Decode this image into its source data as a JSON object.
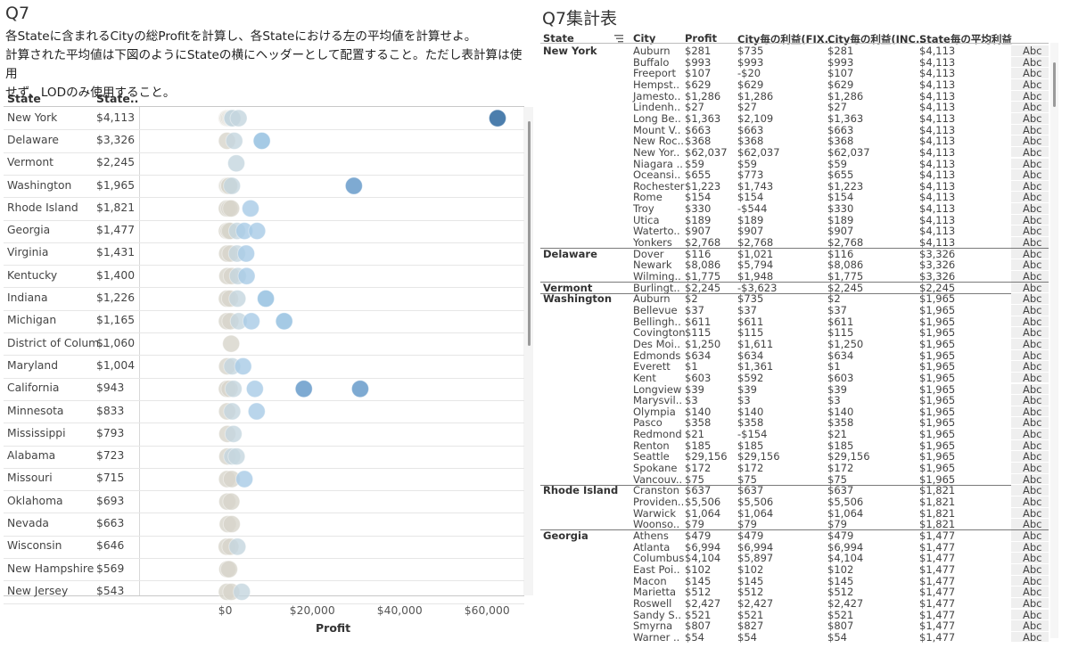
{
  "left": {
    "title": "Q7",
    "description_line1": "各Stateに含まれるCityの総Profitを計算し、各Stateにおける左の平均値を計算せよ。",
    "description_line2": "計算された平均値は下図のようにStateの横にヘッダーとして配置すること。ただし表計算は使用",
    "description_line3": "せず、LODのみ使用すること。",
    "header_state": "State",
    "header_value": "State..",
    "x_axis_title": "Profit",
    "x_ticks": [
      "$0",
      "$20,000",
      "$40,000",
      "$60,000"
    ],
    "rows": [
      {
        "state": "New York",
        "avg": "$4,113",
        "points": [
          281,
          993,
          107,
          629,
          1286,
          27,
          1363,
          663,
          368,
          62037,
          59,
          655,
          1223,
          154,
          330,
          189,
          907,
          2768
        ]
      },
      {
        "state": "Delaware",
        "avg": "$3,326",
        "points": [
          116,
          8086,
          1775
        ]
      },
      {
        "state": "Vermont",
        "avg": "$2,245",
        "points": [
          2245
        ]
      },
      {
        "state": "Washington",
        "avg": "$1,965",
        "points": [
          2,
          37,
          611,
          115,
          1250,
          634,
          1,
          603,
          39,
          3,
          140,
          358,
          21,
          185,
          29156,
          172,
          75
        ]
      },
      {
        "state": "Rhode Island",
        "avg": "$1,821",
        "points": [
          637,
          5506,
          1064,
          79
        ]
      },
      {
        "state": "Georgia",
        "avg": "$1,477",
        "points": [
          479,
          6994,
          4104,
          102,
          145,
          512,
          2427,
          521,
          807,
          54
        ]
      },
      {
        "state": "Virginia",
        "avg": "$1,431",
        "points": [
          150,
          900,
          2400,
          4500
        ]
      },
      {
        "state": "Kentucky",
        "avg": "$1,400",
        "points": [
          200,
          1200,
          2600,
          4600
        ]
      },
      {
        "state": "Indiana",
        "avg": "$1,226",
        "points": [
          100,
          800,
          2500,
          9000
        ]
      },
      {
        "state": "Michigan",
        "avg": "$1,165",
        "points": [
          100,
          900,
          2800,
          5700,
          13200
        ]
      },
      {
        "state": "District of Colum..",
        "avg": "$1,060",
        "points": [
          1060
        ]
      },
      {
        "state": "Maryland",
        "avg": "$1,004",
        "points": [
          150,
          1300,
          3800
        ]
      },
      {
        "state": "California",
        "avg": "$943",
        "points": [
          100,
          700,
          1600,
          6500,
          17700,
          30600
        ]
      },
      {
        "state": "Minnesota",
        "avg": "$833",
        "points": [
          150,
          1300,
          6900
        ]
      },
      {
        "state": "Mississippi",
        "avg": "$793",
        "points": [
          200,
          1600
        ]
      },
      {
        "state": "Alabama",
        "avg": "$723",
        "points": [
          200,
          1300,
          2300
        ]
      },
      {
        "state": "Missouri",
        "avg": "$715",
        "points": [
          150,
          1200,
          4100
        ]
      },
      {
        "state": "Oklahoma",
        "avg": "$693",
        "points": [
          200,
          1100
        ]
      },
      {
        "state": "Nevada",
        "avg": "$663",
        "points": [
          300,
          1200
        ]
      },
      {
        "state": "Wisconsin",
        "avg": "$646",
        "points": [
          50,
          900,
          2500
        ]
      },
      {
        "state": "New Hampshire",
        "avg": "$569",
        "points": [
          200,
          600
        ]
      },
      {
        "state": "New Jersey",
        "avg": "$543",
        "points": [
          100,
          1100,
          3500
        ]
      }
    ]
  },
  "chart_data": {
    "type": "scatter",
    "xlabel": "Profit",
    "xlim": [
      0,
      70000
    ],
    "x_ticks": [
      "$0",
      "$20,000",
      "$40,000",
      "$60,000"
    ],
    "note_categories": "states in left panel rows"
  },
  "right": {
    "title": "Q7集計表",
    "columns": [
      "State",
      "City",
      "Profit",
      "City毎の利益(FIX..",
      "City毎の利益(INC..",
      "State毎の平均利益"
    ],
    "abc": "Abc",
    "groups": [
      {
        "state": "New York",
        "rows": [
          [
            "Auburn",
            "$281",
            "$735",
            "$281",
            "$4,113"
          ],
          [
            "Buffalo",
            "$993",
            "$993",
            "$993",
            "$4,113"
          ],
          [
            "Freeport",
            "$107",
            "-$20",
            "$107",
            "$4,113"
          ],
          [
            "Hempst..",
            "$629",
            "$629",
            "$629",
            "$4,113"
          ],
          [
            "Jamesto..",
            "$1,286",
            "$1,286",
            "$1,286",
            "$4,113"
          ],
          [
            "Lindenh..",
            "$27",
            "$27",
            "$27",
            "$4,113"
          ],
          [
            "Long Be..",
            "$1,363",
            "$2,109",
            "$1,363",
            "$4,113"
          ],
          [
            "Mount V..",
            "$663",
            "$663",
            "$663",
            "$4,113"
          ],
          [
            "New Roc..",
            "$368",
            "$368",
            "$368",
            "$4,113"
          ],
          [
            "New Yor..",
            "$62,037",
            "$62,037",
            "$62,037",
            "$4,113"
          ],
          [
            "Niagara ..",
            "$59",
            "$59",
            "$59",
            "$4,113"
          ],
          [
            "Oceansi..",
            "$655",
            "$773",
            "$655",
            "$4,113"
          ],
          [
            "Rochester",
            "$1,223",
            "$1,743",
            "$1,223",
            "$4,113"
          ],
          [
            "Rome",
            "$154",
            "$154",
            "$154",
            "$4,113"
          ],
          [
            "Troy",
            "$330",
            "-$544",
            "$330",
            "$4,113"
          ],
          [
            "Utica",
            "$189",
            "$189",
            "$189",
            "$4,113"
          ],
          [
            "Waterto..",
            "$907",
            "$907",
            "$907",
            "$4,113"
          ],
          [
            "Yonkers",
            "$2,768",
            "$2,768",
            "$2,768",
            "$4,113"
          ]
        ]
      },
      {
        "state": "Delaware",
        "rows": [
          [
            "Dover",
            "$116",
            "$1,021",
            "$116",
            "$3,326"
          ],
          [
            "Newark",
            "$8,086",
            "$5,794",
            "$8,086",
            "$3,326"
          ],
          [
            "Wilming..",
            "$1,775",
            "$1,948",
            "$1,775",
            "$3,326"
          ]
        ]
      },
      {
        "state": "Vermont",
        "rows": [
          [
            "Burlingt..",
            "$2,245",
            "-$3,623",
            "$2,245",
            "$2,245"
          ]
        ]
      },
      {
        "state": "Washington",
        "rows": [
          [
            "Auburn",
            "$2",
            "$735",
            "$2",
            "$1,965"
          ],
          [
            "Bellevue",
            "$37",
            "$37",
            "$37",
            "$1,965"
          ],
          [
            "Bellingh..",
            "$611",
            "$611",
            "$611",
            "$1,965"
          ],
          [
            "Covington",
            "$115",
            "$115",
            "$115",
            "$1,965"
          ],
          [
            "Des Moi..",
            "$1,250",
            "$1,611",
            "$1,250",
            "$1,965"
          ],
          [
            "Edmonds",
            "$634",
            "$634",
            "$634",
            "$1,965"
          ],
          [
            "Everett",
            "$1",
            "$1,361",
            "$1",
            "$1,965"
          ],
          [
            "Kent",
            "$603",
            "$592",
            "$603",
            "$1,965"
          ],
          [
            "Longview",
            "$39",
            "$39",
            "$39",
            "$1,965"
          ],
          [
            "Marysvil..",
            "$3",
            "$3",
            "$3",
            "$1,965"
          ],
          [
            "Olympia",
            "$140",
            "$140",
            "$140",
            "$1,965"
          ],
          [
            "Pasco",
            "$358",
            "$358",
            "$358",
            "$1,965"
          ],
          [
            "Redmond",
            "$21",
            "-$154",
            "$21",
            "$1,965"
          ],
          [
            "Renton",
            "$185",
            "$185",
            "$185",
            "$1,965"
          ],
          [
            "Seattle",
            "$29,156",
            "$29,156",
            "$29,156",
            "$1,965"
          ],
          [
            "Spokane",
            "$172",
            "$172",
            "$172",
            "$1,965"
          ],
          [
            "Vancouv..",
            "$75",
            "$75",
            "$75",
            "$1,965"
          ]
        ]
      },
      {
        "state": "Rhode Island",
        "rows": [
          [
            "Cranston",
            "$637",
            "$637",
            "$637",
            "$1,821"
          ],
          [
            "Providen..",
            "$5,506",
            "$5,506",
            "$5,506",
            "$1,821"
          ],
          [
            "Warwick",
            "$1,064",
            "$1,064",
            "$1,064",
            "$1,821"
          ],
          [
            "Woonso..",
            "$79",
            "$79",
            "$79",
            "$1,821"
          ]
        ]
      },
      {
        "state": "Georgia",
        "rows": [
          [
            "Athens",
            "$479",
            "$479",
            "$479",
            "$1,477"
          ],
          [
            "Atlanta",
            "$6,994",
            "$6,994",
            "$6,994",
            "$1,477"
          ],
          [
            "Columbus",
            "$4,104",
            "$5,897",
            "$4,104",
            "$1,477"
          ],
          [
            "East Poi..",
            "$102",
            "$102",
            "$102",
            "$1,477"
          ],
          [
            "Macon",
            "$145",
            "$145",
            "$145",
            "$1,477"
          ],
          [
            "Marietta",
            "$512",
            "$512",
            "$512",
            "$1,477"
          ],
          [
            "Roswell",
            "$2,427",
            "$2,427",
            "$2,427",
            "$1,477"
          ],
          [
            "Sandy S..",
            "$521",
            "$521",
            "$521",
            "$1,477"
          ],
          [
            "Smyrna",
            "$807",
            "$827",
            "$807",
            "$1,477"
          ],
          [
            "Warner ..",
            "$54",
            "$54",
            "$54",
            "$1,477"
          ]
        ]
      }
    ]
  }
}
